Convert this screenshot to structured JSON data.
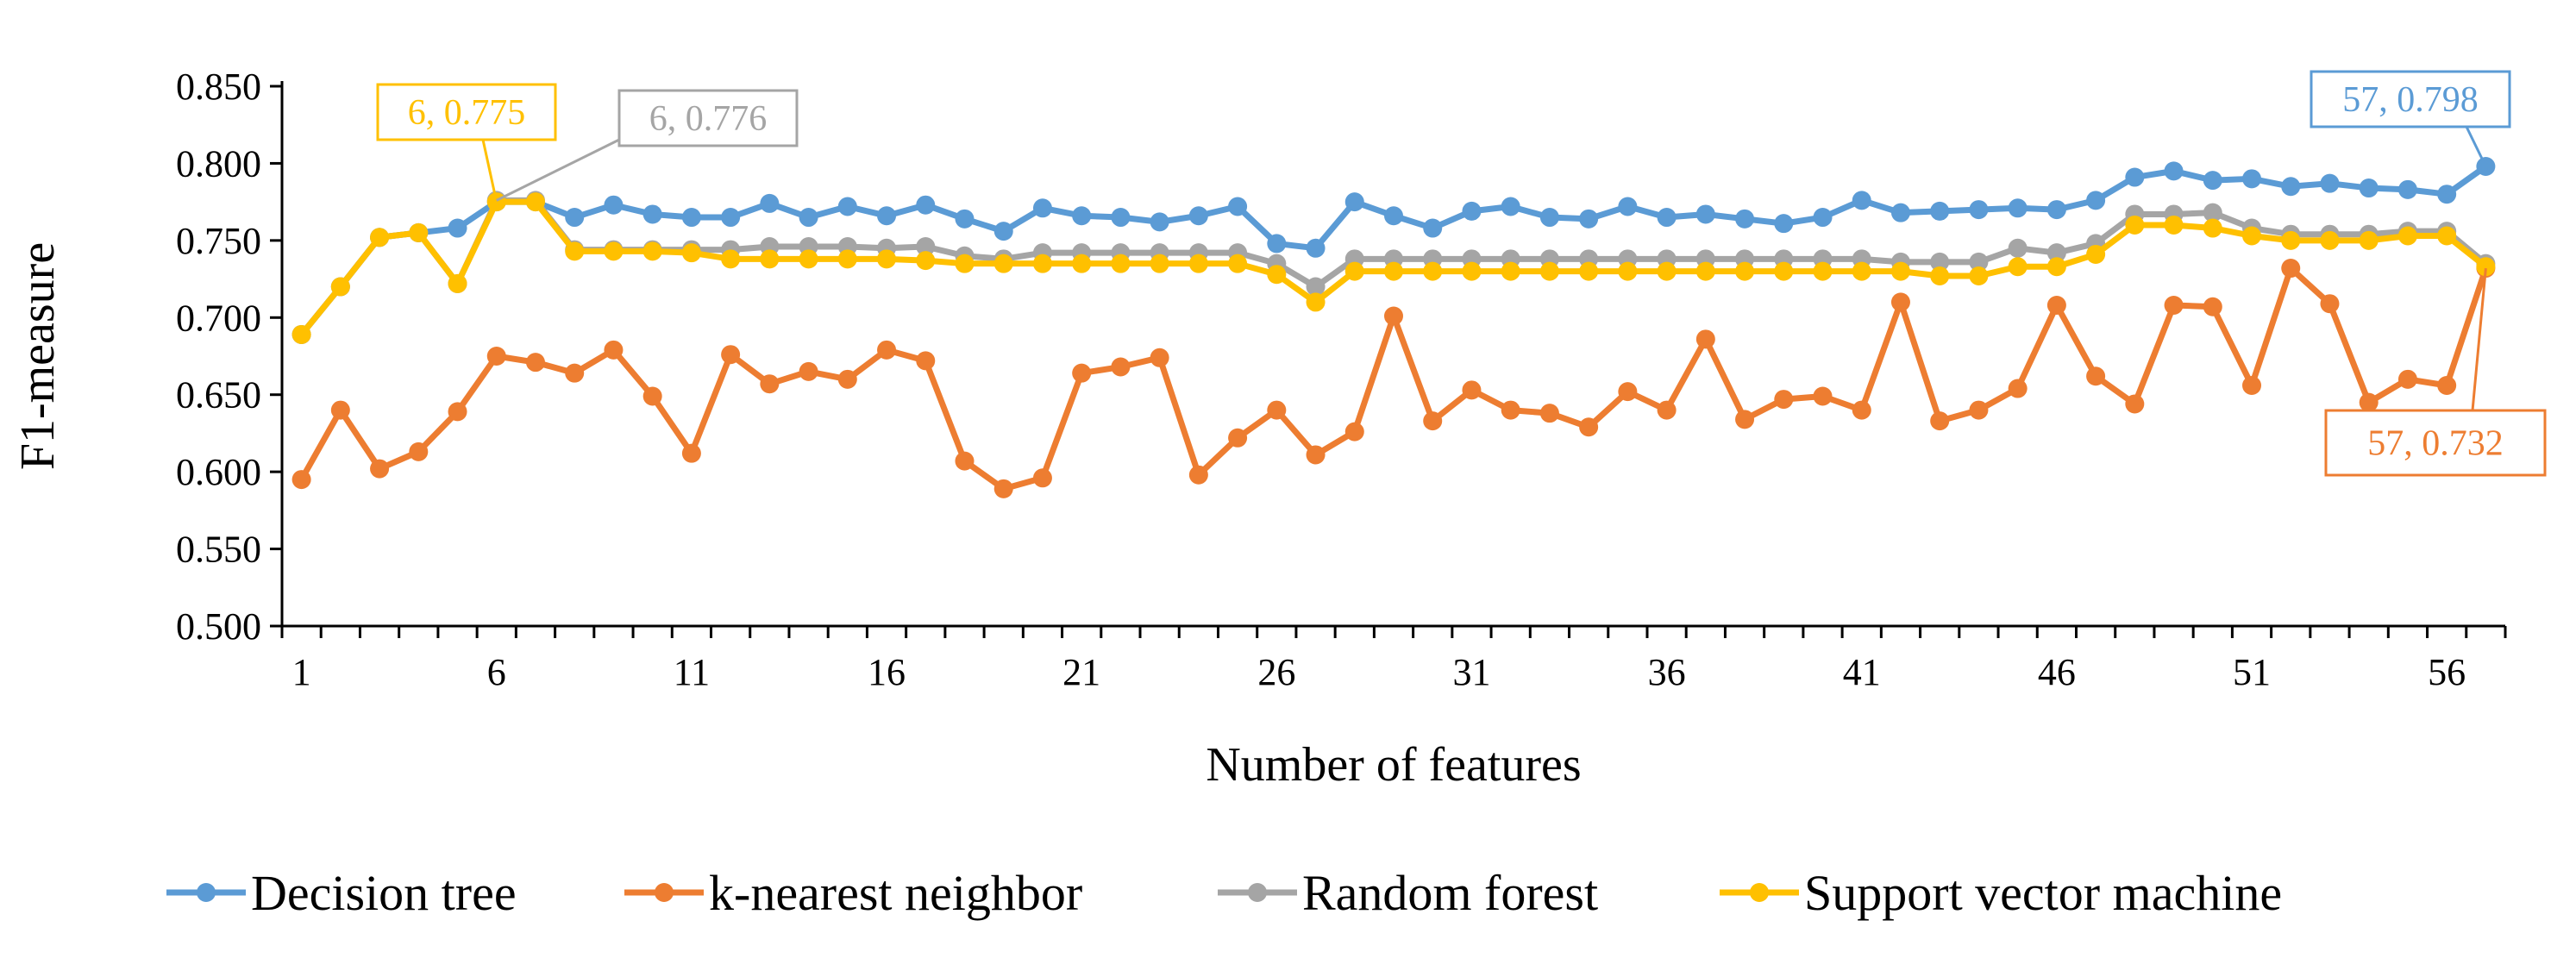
{
  "chart_data": {
    "type": "line",
    "title": "",
    "xlabel": "Number of features",
    "ylabel": "F1-measure",
    "ylim": [
      0.5,
      0.85
    ],
    "yticks": [
      "0.500",
      "0.550",
      "0.600",
      "0.650",
      "0.700",
      "0.750",
      "0.800",
      "0.850"
    ],
    "xticks": [
      "1",
      "6",
      "11",
      "16",
      "21",
      "26",
      "31",
      "36",
      "41",
      "46",
      "51",
      "56"
    ],
    "x": [
      1,
      2,
      3,
      4,
      5,
      6,
      7,
      8,
      9,
      10,
      11,
      12,
      13,
      14,
      15,
      16,
      17,
      18,
      19,
      20,
      21,
      22,
      23,
      24,
      25,
      26,
      27,
      28,
      29,
      30,
      31,
      32,
      33,
      34,
      35,
      36,
      37,
      38,
      39,
      40,
      41,
      42,
      43,
      44,
      45,
      46,
      47,
      48,
      49,
      50,
      51,
      52,
      53,
      54,
      55,
      56,
      57
    ],
    "series": [
      {
        "name": "Decision tree",
        "color": "#5B9BD5",
        "values": [
          0.689,
          0.72,
          0.752,
          0.755,
          0.758,
          0.775,
          0.775,
          0.765,
          0.773,
          0.767,
          0.765,
          0.765,
          0.774,
          0.765,
          0.772,
          0.766,
          0.773,
          0.764,
          0.756,
          0.771,
          0.766,
          0.765,
          0.762,
          0.766,
          0.772,
          0.748,
          0.745,
          0.775,
          0.766,
          0.758,
          0.769,
          0.772,
          0.765,
          0.764,
          0.772,
          0.765,
          0.767,
          0.764,
          0.761,
          0.765,
          0.776,
          0.768,
          0.769,
          0.77,
          0.771,
          0.77,
          0.776,
          0.791,
          0.795,
          0.789,
          0.79,
          0.785,
          0.787,
          0.784,
          0.783,
          0.78,
          0.798
        ]
      },
      {
        "name": "k-nearest neighbor",
        "color": "#ED7D31",
        "values": [
          0.595,
          0.64,
          0.602,
          0.613,
          0.639,
          0.675,
          0.671,
          0.664,
          0.679,
          0.649,
          0.612,
          0.676,
          0.657,
          0.665,
          0.66,
          0.679,
          0.672,
          0.607,
          0.589,
          0.596,
          0.664,
          0.668,
          0.674,
          0.598,
          0.622,
          0.64,
          0.611,
          0.626,
          0.701,
          0.633,
          0.653,
          0.64,
          0.638,
          0.629,
          0.652,
          0.64,
          0.686,
          0.634,
          0.647,
          0.649,
          0.64,
          0.71,
          0.633,
          0.64,
          0.654,
          0.708,
          0.662,
          0.644,
          0.708,
          0.707,
          0.656,
          0.732,
          0.709,
          0.645,
          0.66,
          0.656,
          0.732
        ]
      },
      {
        "name": "Random forest",
        "color": "#A5A5A5",
        "values": [
          0.689,
          0.72,
          0.752,
          0.755,
          0.722,
          0.776,
          0.776,
          0.744,
          0.744,
          0.744,
          0.744,
          0.744,
          0.746,
          0.746,
          0.746,
          0.745,
          0.746,
          0.74,
          0.738,
          0.742,
          0.742,
          0.742,
          0.742,
          0.742,
          0.742,
          0.735,
          0.72,
          0.738,
          0.738,
          0.738,
          0.738,
          0.738,
          0.738,
          0.738,
          0.738,
          0.738,
          0.738,
          0.738,
          0.738,
          0.738,
          0.738,
          0.736,
          0.736,
          0.736,
          0.745,
          0.742,
          0.748,
          0.767,
          0.767,
          0.768,
          0.758,
          0.754,
          0.754,
          0.754,
          0.756,
          0.756,
          0.735
        ]
      },
      {
        "name": "Support vector machine",
        "color": "#FFC000",
        "values": [
          0.689,
          0.72,
          0.752,
          0.755,
          0.722,
          0.775,
          0.775,
          0.743,
          0.743,
          0.743,
          0.742,
          0.738,
          0.738,
          0.738,
          0.738,
          0.738,
          0.737,
          0.735,
          0.735,
          0.735,
          0.735,
          0.735,
          0.735,
          0.735,
          0.735,
          0.728,
          0.71,
          0.73,
          0.73,
          0.73,
          0.73,
          0.73,
          0.73,
          0.73,
          0.73,
          0.73,
          0.73,
          0.73,
          0.73,
          0.73,
          0.73,
          0.73,
          0.727,
          0.727,
          0.733,
          0.733,
          0.741,
          0.76,
          0.76,
          0.758,
          0.753,
          0.75,
          0.75,
          0.75,
          0.753,
          0.753,
          0.733
        ]
      }
    ],
    "annotations": [
      {
        "text": "6, 0.775",
        "series": "Support vector machine",
        "x": 6,
        "y": 0.775,
        "color": "#FFC000"
      },
      {
        "text": "6, 0.776",
        "series": "Random forest",
        "x": 6,
        "y": 0.776,
        "color": "#A5A5A5"
      },
      {
        "text": "57, 0.798",
        "series": "Decision tree",
        "x": 57,
        "y": 0.798,
        "color": "#5B9BD5"
      },
      {
        "text": "57, 0.732",
        "series": "k-nearest neighbor",
        "x": 57,
        "y": 0.732,
        "color": "#ED7D31"
      }
    ],
    "legend_position": "bottom"
  }
}
